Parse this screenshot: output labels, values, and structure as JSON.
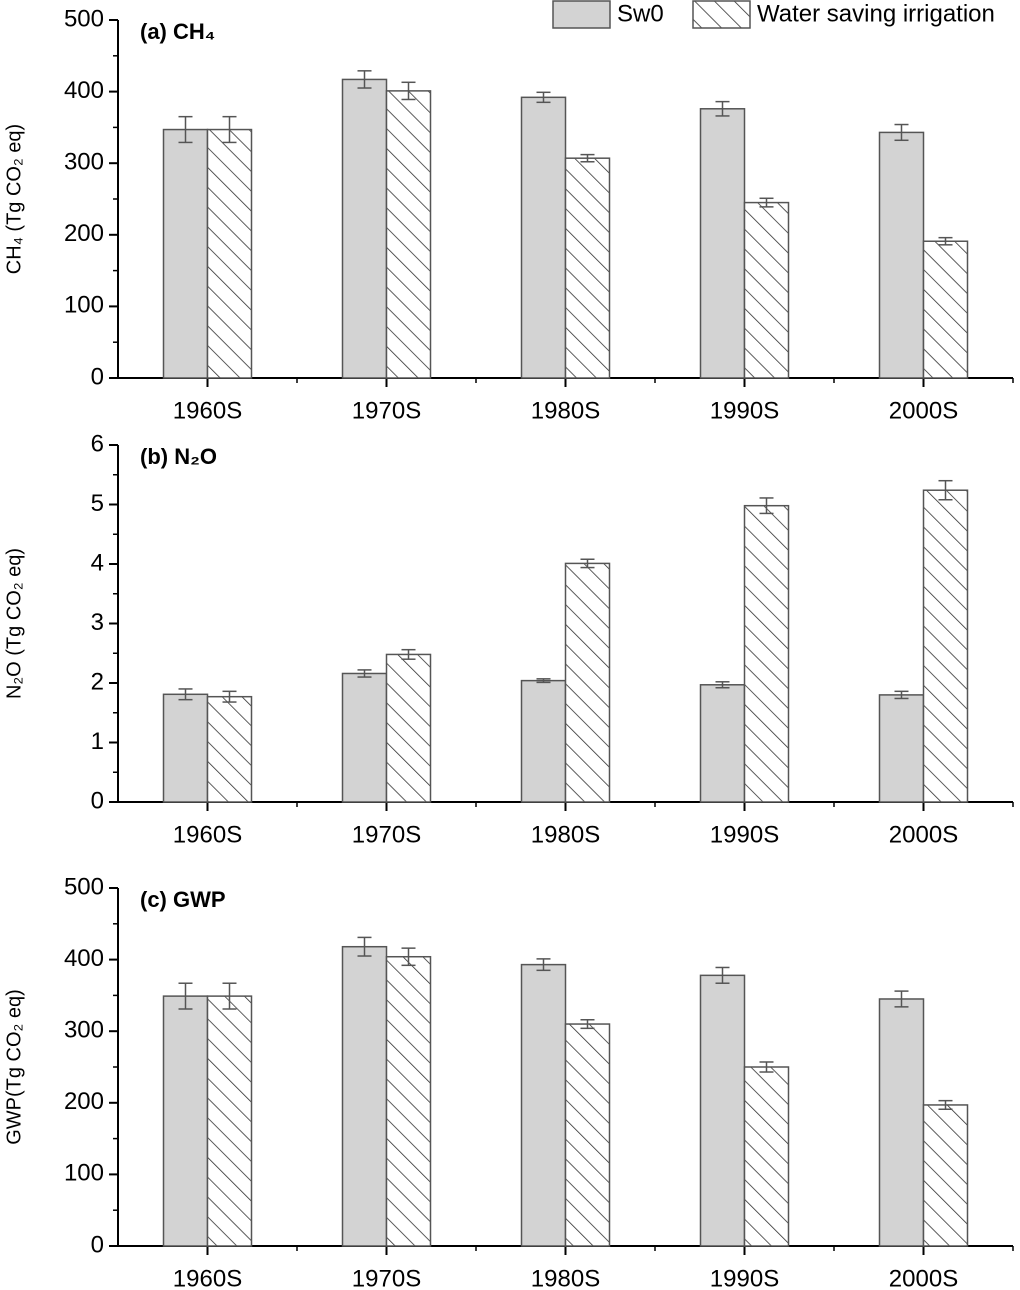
{
  "chart_data": [
    {
      "type": "bar",
      "title": "(a) CH₄",
      "ylabel": "CH₄ (Tg CO₂ eq)",
      "legend": "upper right",
      "categories": [
        "1960S",
        "1970S",
        "1980S",
        "1990S",
        "2000S"
      ],
      "series": [
        {
          "name": "Sw0",
          "color": "#d3d3d3",
          "hatch": false,
          "values": [
            347,
            417,
            392,
            376,
            343
          ],
          "errors": [
            18,
            12,
            7,
            10,
            11
          ]
        },
        {
          "name": "Water saving irrigation",
          "color": "#ffffff",
          "hatch": true,
          "values": [
            347,
            401,
            307,
            245,
            191
          ],
          "errors": [
            18,
            12,
            5,
            6,
            5
          ]
        }
      ],
      "ylim": [
        0,
        500
      ],
      "yticks": [
        0,
        100,
        200,
        300,
        400,
        500
      ]
    },
    {
      "type": "bar",
      "title": "(b) N₂O",
      "ylabel": "N₂O (Tg CO₂ eq)",
      "categories": [
        "1960S",
        "1970S",
        "1980S",
        "1990S",
        "2000S"
      ],
      "series": [
        {
          "name": "Sw0",
          "color": "#d3d3d3",
          "hatch": false,
          "values": [
            1.81,
            2.16,
            2.04,
            1.97,
            1.8
          ],
          "errors": [
            0.09,
            0.06,
            0.03,
            0.05,
            0.06
          ]
        },
        {
          "name": "Water saving irrigation",
          "color": "#ffffff",
          "hatch": true,
          "values": [
            1.77,
            2.48,
            4.01,
            4.98,
            5.24
          ],
          "errors": [
            0.09,
            0.08,
            0.07,
            0.13,
            0.16
          ]
        }
      ],
      "ylim": [
        0,
        6
      ],
      "yticks": [
        0,
        1,
        2,
        3,
        4,
        5,
        6
      ]
    },
    {
      "type": "bar",
      "title": "(c) GWP",
      "ylabel": "GWP(Tg CO₂ eq)",
      "categories": [
        "1960S",
        "1970S",
        "1980S",
        "1990S",
        "2000S"
      ],
      "series": [
        {
          "name": "Sw0",
          "color": "#d3d3d3",
          "hatch": false,
          "values": [
            349,
            418,
            393,
            378,
            345
          ],
          "errors": [
            18,
            13,
            8,
            11,
            11
          ]
        },
        {
          "name": "Water saving irrigation",
          "color": "#ffffff",
          "hatch": true,
          "values": [
            349,
            404,
            310,
            250,
            197
          ],
          "errors": [
            18,
            12,
            6,
            7,
            6
          ]
        }
      ],
      "ylim": [
        0,
        500
      ],
      "yticks": [
        0,
        100,
        200,
        300,
        400,
        500
      ]
    }
  ]
}
